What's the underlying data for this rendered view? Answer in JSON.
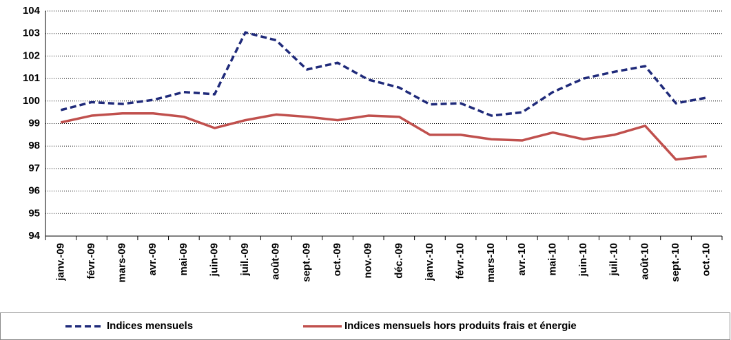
{
  "chart_data": {
    "type": "line",
    "categories": [
      "janv.-09",
      "févr.-09",
      "mars-09",
      "avr.-09",
      "mai-09",
      "juin-09",
      "juil.-09",
      "août-09",
      "sept.-09",
      "oct.-09",
      "nov.-09",
      "déc.-09",
      "janv.-10",
      "févr.-10",
      "mars-10",
      "avr.-10",
      "mai-10",
      "juin-10",
      "juil.-10",
      "août-10",
      "sept.-10",
      "oct.-10"
    ],
    "series": [
      {
        "name": "Indices mensuels",
        "color": "#1f2a7a",
        "dash": true,
        "values": [
          99.6,
          99.95,
          99.87,
          100.05,
          100.4,
          100.3,
          103.05,
          102.7,
          101.4,
          101.7,
          100.95,
          100.6,
          99.85,
          99.9,
          99.35,
          99.5,
          100.4,
          101.0,
          101.3,
          101.55,
          99.9,
          100.15
        ]
      },
      {
        "name": "Indices mensuels hors produits frais et énergie",
        "color": "#c0504d",
        "dash": false,
        "values": [
          99.05,
          99.35,
          99.45,
          99.45,
          99.3,
          98.8,
          99.15,
          99.4,
          99.3,
          99.15,
          99.35,
          99.3,
          98.5,
          98.5,
          98.3,
          98.25,
          98.6,
          98.3,
          98.5,
          98.9,
          97.4,
          97.55
        ]
      }
    ],
    "ylim": [
      94,
      104
    ],
    "yticks": [
      94,
      95,
      96,
      97,
      98,
      99,
      100,
      101,
      102,
      103,
      104
    ],
    "grid": true,
    "legend": "bottom"
  }
}
